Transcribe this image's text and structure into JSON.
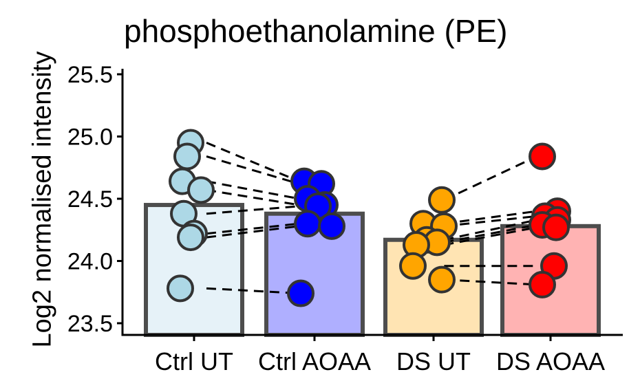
{
  "chart_data": {
    "type": "bar",
    "title": "phosphoethanolamine (PE)",
    "xlabel": "",
    "ylabel": "Log2 normalised intensity",
    "ylim": [
      23.42,
      25.55
    ],
    "yticks": [
      23.5,
      24.0,
      24.5,
      25.0,
      25.5
    ],
    "ytick_labels": [
      "23.5",
      "24.0",
      "24.5",
      "25.0",
      "25.5"
    ],
    "categories": [
      "Ctrl UT",
      "Ctrl AOAA",
      "DS UT",
      "DS AOAA"
    ],
    "bar_values": [
      24.45,
      24.38,
      24.17,
      24.28
    ],
    "bar_fill_colors": [
      "#e6f2f8",
      "#afafff",
      "#ffe4b3",
      "#ffb3b3"
    ],
    "point_colors": [
      "#add8e6",
      "#0000ff",
      "#ffa500",
      "#ff0000"
    ],
    "points": [
      [
        24.95,
        24.84,
        24.64,
        24.57,
        24.38,
        24.22,
        24.19,
        23.78
      ],
      [
        24.64,
        24.62,
        24.5,
        24.45,
        24.44,
        24.3,
        24.28,
        23.74
      ],
      [
        24.49,
        24.3,
        24.28,
        24.17,
        24.15,
        24.13,
        23.96,
        23.85
      ],
      [
        24.84,
        24.4,
        24.36,
        24.33,
        24.29,
        24.27,
        23.96,
        23.81
      ]
    ],
    "pairs": [
      {
        "from": [
          0,
          0.95,
          24.95
        ],
        "to": [
          1,
          0.95,
          24.64
        ]
      },
      {
        "from": [
          0,
          0.95,
          24.84
        ],
        "to": [
          1,
          0.95,
          24.62
        ]
      },
      {
        "from": [
          0,
          0.95,
          24.64
        ],
        "to": [
          1,
          0.95,
          24.5
        ]
      },
      {
        "from": [
          0,
          0.95,
          24.57
        ],
        "to": [
          1,
          0.95,
          24.45
        ]
      },
      {
        "from": [
          0,
          0.95,
          24.38
        ],
        "to": [
          1,
          0.95,
          24.44
        ]
      },
      {
        "from": [
          0,
          0.95,
          24.22
        ],
        "to": [
          1,
          0.95,
          24.3
        ]
      },
      {
        "from": [
          0,
          0.95,
          24.19
        ],
        "to": [
          1,
          0.95,
          24.28
        ]
      },
      {
        "from": [
          0,
          0.95,
          23.78
        ],
        "to": [
          1,
          0.95,
          23.74
        ]
      },
      {
        "from": [
          2,
          2.95,
          24.49
        ],
        "to": [
          3,
          3.95,
          24.84
        ]
      },
      {
        "from": [
          2,
          2.95,
          24.3
        ],
        "to": [
          3,
          3.95,
          24.4
        ]
      },
      {
        "from": [
          2,
          2.95,
          24.28
        ],
        "to": [
          3,
          3.95,
          24.36
        ]
      },
      {
        "from": [
          2,
          2.95,
          24.17
        ],
        "to": [
          3,
          3.95,
          24.33
        ]
      },
      {
        "from": [
          2,
          2.95,
          24.15
        ],
        "to": [
          3,
          3.95,
          24.29
        ]
      },
      {
        "from": [
          2,
          2.95,
          24.13
        ],
        "to": [
          3,
          3.95,
          24.27
        ]
      },
      {
        "from": [
          2,
          2.95,
          23.96
        ],
        "to": [
          3,
          3.95,
          23.96
        ]
      },
      {
        "from": [
          2,
          2.95,
          23.85
        ],
        "to": [
          3,
          3.95,
          23.81
        ]
      }
    ],
    "bar_edge_color": "#4d4d4d",
    "point_edge_color": "#333333",
    "grid": false,
    "legend": "none"
  }
}
